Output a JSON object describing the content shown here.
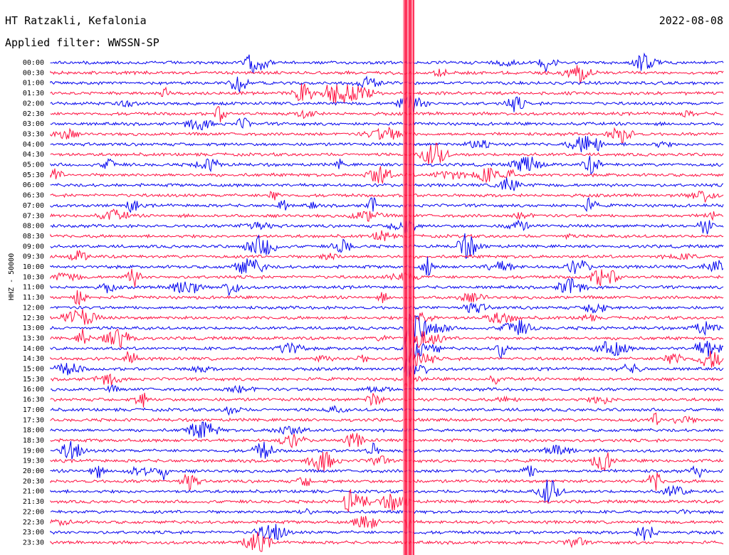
{
  "header": {
    "station": "HT Ratzakli, Kefalonia",
    "date": "2022-08-08",
    "filter": "Applied filter: WWSSN-SP"
  },
  "channel_label": "HHZ - 50000",
  "colors": {
    "blue": "#0000ee",
    "red": "#ff1040"
  },
  "chart_data": {
    "type": "line",
    "rows": [
      "00:00",
      "00:30",
      "01:00",
      "01:30",
      "02:00",
      "02:30",
      "03:00",
      "03:30",
      "04:00",
      "04:30",
      "05:00",
      "05:30",
      "06:00",
      "06:30",
      "07:00",
      "07:30",
      "08:00",
      "08:30",
      "09:00",
      "09:30",
      "10:00",
      "10:30",
      "11:00",
      "11:30",
      "12:00",
      "12:30",
      "13:00",
      "13:30",
      "14:00",
      "14:30",
      "15:00",
      "15:30",
      "16:00",
      "16:30",
      "17:00",
      "17:30",
      "18:00",
      "18:30",
      "19:00",
      "19:30",
      "20:00",
      "20:30",
      "21:00",
      "21:30",
      "22:00",
      "22:30",
      "23:00",
      "23:30"
    ],
    "row_colors": [
      "blue",
      "red"
    ]
  }
}
